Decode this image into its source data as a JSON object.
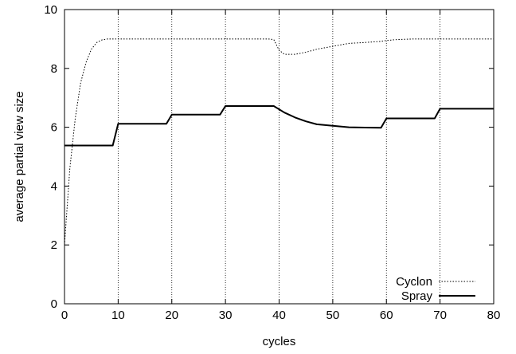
{
  "chart_data": {
    "type": "line",
    "title": "",
    "xlabel": "cycles",
    "ylabel": "average partial view size",
    "xlim": [
      0,
      80
    ],
    "ylim": [
      0,
      10
    ],
    "xticks": [
      "0",
      "10",
      "20",
      "30",
      "40",
      "50",
      "60",
      "70",
      "80"
    ],
    "yticks": [
      "0",
      "2",
      "4",
      "6",
      "8",
      "10"
    ],
    "vgrid_at": [
      10,
      20,
      30,
      40,
      50,
      60,
      70
    ],
    "legend_position": "bottom-right",
    "series": [
      {
        "name": "Cyclon",
        "style": "dotted",
        "color": "#000000",
        "points": [
          [
            0,
            2.0
          ],
          [
            1,
            4.6
          ],
          [
            2,
            6.3
          ],
          [
            3,
            7.5
          ],
          [
            4,
            8.2
          ],
          [
            5,
            8.65
          ],
          [
            6,
            8.88
          ],
          [
            7,
            8.97
          ],
          [
            8,
            9.0
          ],
          [
            10,
            9.0
          ],
          [
            20,
            9.0
          ],
          [
            30,
            9.0
          ],
          [
            38,
            9.0
          ],
          [
            39,
            8.98
          ],
          [
            40,
            8.62
          ],
          [
            41,
            8.48
          ],
          [
            43,
            8.48
          ],
          [
            45,
            8.55
          ],
          [
            47,
            8.65
          ],
          [
            50,
            8.75
          ],
          [
            53,
            8.85
          ],
          [
            56,
            8.88
          ],
          [
            59,
            8.92
          ],
          [
            60,
            8.95
          ],
          [
            62,
            8.98
          ],
          [
            65,
            9.0
          ],
          [
            70,
            9.0
          ],
          [
            80,
            9.0
          ]
        ]
      },
      {
        "name": "Spray",
        "style": "solid",
        "color": "#000000",
        "points": [
          [
            0,
            5.38
          ],
          [
            9,
            5.38
          ],
          [
            10,
            6.12
          ],
          [
            19,
            6.12
          ],
          [
            20,
            6.43
          ],
          [
            29,
            6.43
          ],
          [
            30,
            6.72
          ],
          [
            39,
            6.72
          ],
          [
            41,
            6.5
          ],
          [
            43,
            6.33
          ],
          [
            45,
            6.2
          ],
          [
            47,
            6.1
          ],
          [
            50,
            6.05
          ],
          [
            53,
            6.0
          ],
          [
            56,
            5.99
          ],
          [
            59,
            5.98
          ],
          [
            60,
            6.3
          ],
          [
            69,
            6.3
          ],
          [
            70,
            6.63
          ],
          [
            80,
            6.63
          ]
        ]
      }
    ]
  }
}
